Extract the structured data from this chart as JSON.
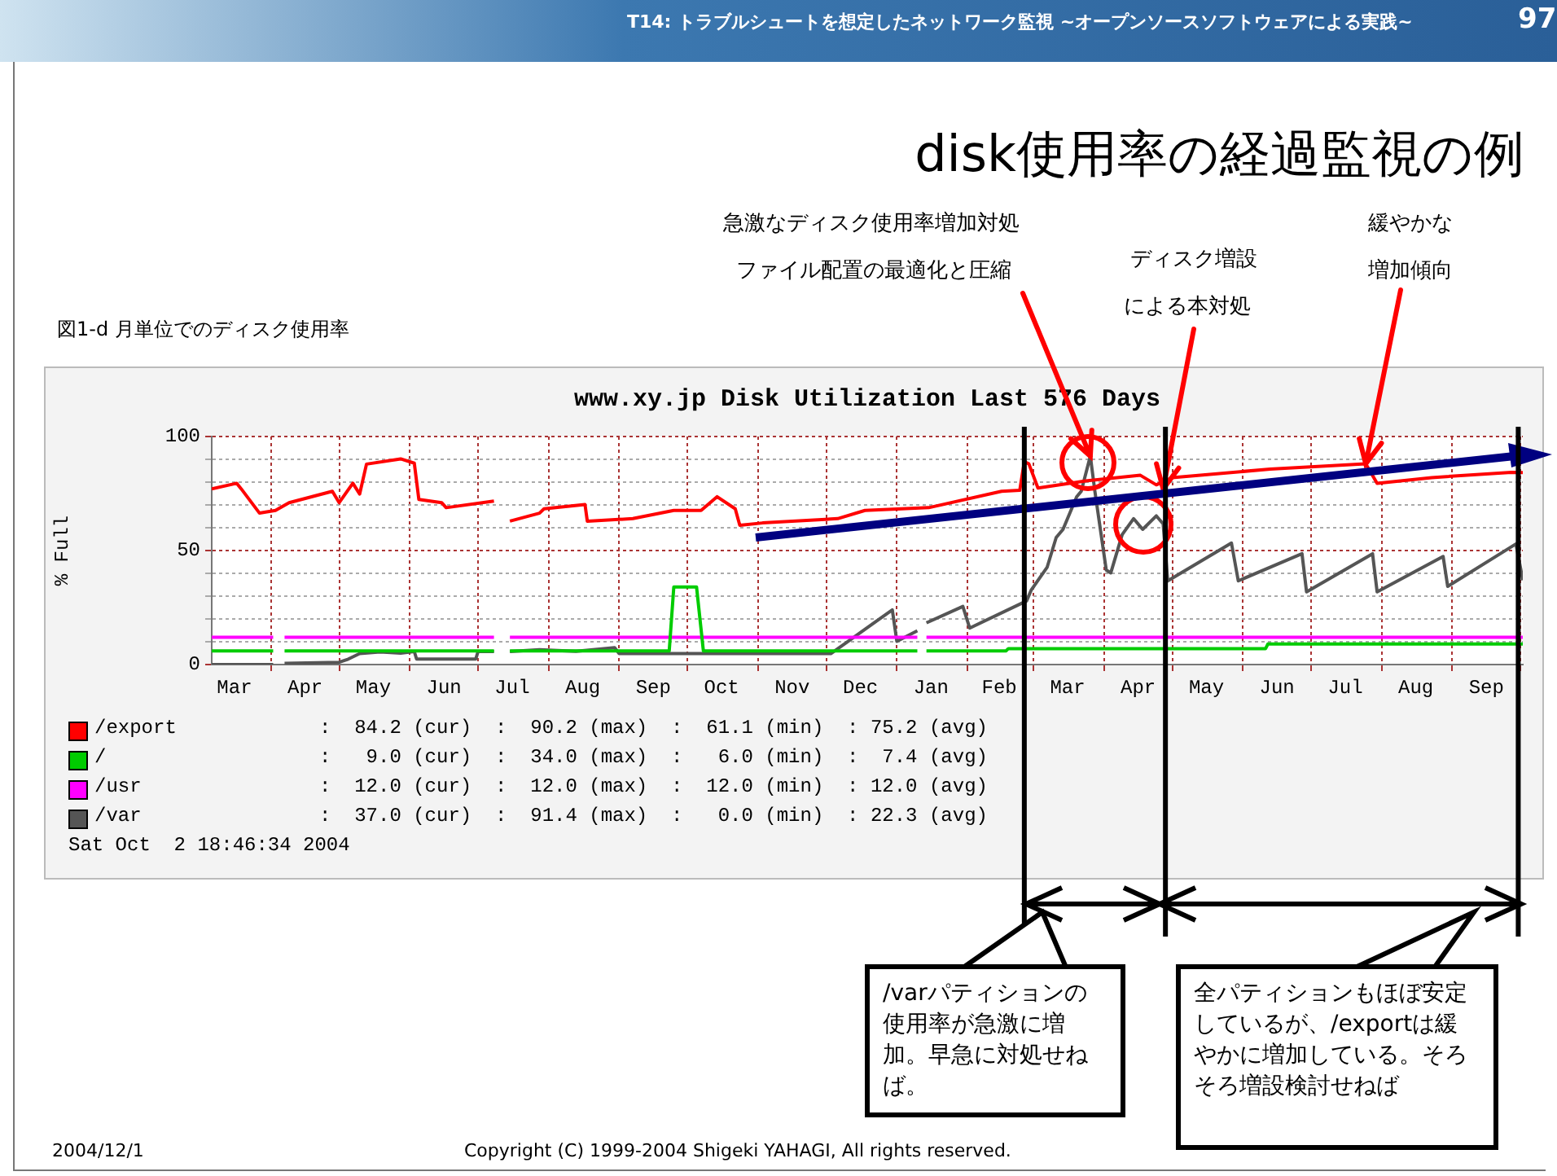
{
  "chart_data": {
    "type": "line",
    "title": "www.xy.jp Disk Utilization Last 576 Days",
    "ylabel": "% Full",
    "xlim": [
      "2003-03-06",
      "2004-10-02"
    ],
    "xticks": [
      {
        "value": "2003-03-16",
        "label": "Mar"
      },
      {
        "value": "2003-04-01",
        "label": null
      },
      {
        "value": "2003-04-16",
        "label": "Apr"
      },
      {
        "value": "2003-05-01",
        "label": null
      },
      {
        "value": "2003-05-16",
        "label": "May"
      },
      {
        "value": "2003-06-01",
        "label": null
      },
      {
        "value": "2003-06-16",
        "label": "Jun"
      },
      {
        "value": "2003-07-01",
        "label": null
      },
      {
        "value": "2003-07-16",
        "label": "Jul"
      },
      {
        "value": "2003-08-01",
        "label": null
      },
      {
        "value": "2003-08-16",
        "label": "Aug"
      },
      {
        "value": "2003-09-01",
        "label": null
      },
      {
        "value": "2003-09-16",
        "label": "Sep"
      },
      {
        "value": "2003-10-01",
        "label": null
      },
      {
        "value": "2003-10-16",
        "label": "Oct"
      },
      {
        "value": "2003-11-01",
        "label": null
      },
      {
        "value": "2003-11-16",
        "label": "Nov"
      },
      {
        "value": "2003-12-01",
        "label": null
      },
      {
        "value": "2003-12-16",
        "label": "Dec"
      },
      {
        "value": "2004-01-01",
        "label": null
      },
      {
        "value": "2004-01-16",
        "label": "Jan"
      },
      {
        "value": "2004-02-01",
        "label": null
      },
      {
        "value": "2004-02-15",
        "label": "Feb"
      },
      {
        "value": "2004-03-01",
        "label": null
      },
      {
        "value": "2004-03-16",
        "label": "Mar"
      },
      {
        "value": "2004-04-01",
        "label": null
      },
      {
        "value": "2004-04-16",
        "label": "Apr"
      },
      {
        "value": "2004-05-01",
        "label": null
      },
      {
        "value": "2004-05-16",
        "label": "May"
      },
      {
        "value": "2004-06-01",
        "label": null
      },
      {
        "value": "2004-06-16",
        "label": "Jun"
      },
      {
        "value": "2004-07-01",
        "label": null
      },
      {
        "value": "2004-07-16",
        "label": "Jul"
      },
      {
        "value": "2004-08-01",
        "label": null
      },
      {
        "value": "2004-08-16",
        "label": "Aug"
      },
      {
        "value": "2004-09-01",
        "label": null
      },
      {
        "value": "2004-09-16",
        "label": "Sep"
      },
      {
        "value": "2004-10-01",
        "label": null
      }
    ],
    "ylim": [
      0,
      100
    ],
    "yticks": [
      0,
      {
        "value": 10,
        "label": null
      },
      {
        "value": 20,
        "label": null
      },
      {
        "value": 30,
        "label": null
      },
      {
        "value": 40,
        "label": null
      },
      50,
      {
        "value": 60,
        "label": null
      },
      {
        "value": 70,
        "label": null
      },
      {
        "value": 80,
        "label": null
      },
      {
        "value": 90,
        "label": null
      },
      100
    ],
    "grid": true,
    "legend": "bottom",
    "series": [
      {
        "name": "/export",
        "color": "#ff0000",
        "x": [
          "2003-03-06",
          "2003-03-17",
          "2003-03-19",
          "2003-03-27",
          "2003-04-03",
          "2003-04-09",
          "2003-04-28",
          "2003-05-01",
          "2003-05-07",
          "2003-05-10",
          "2003-05-13",
          "2003-05-28",
          "2003-06-03",
          "2003-06-05",
          "2003-06-15",
          "2003-06-17",
          "2003-07-08",
          "2003-07-11",
          "2003-07-15",
          "2003-07-28",
          "2003-07-30",
          "2003-08-17",
          "2003-08-18",
          "2003-09-07",
          "2003-09-25",
          "2003-10-07",
          "2003-10-14",
          "2003-10-22",
          "2003-10-24",
          "2003-11-03",
          "2003-12-06",
          "2003-12-18",
          "2004-01-15",
          "2004-02-16",
          "2004-02-24",
          "2004-02-26",
          "2004-02-28",
          "2004-03-03",
          "2004-03-24",
          "2004-04-17",
          "2004-04-24",
          "2004-05-01",
          "2004-06-13",
          "2004-07-25",
          "2004-07-30",
          "2004-08-23",
          "2004-09-27",
          "2004-10-02"
        ],
        "values": [
          77,
          79.5,
          77,
          66.4,
          67.6,
          71,
          76,
          71,
          79.5,
          74.8,
          87.9,
          90.2,
          88.3,
          72.4,
          71,
          68.8,
          71.7,
          null,
          62.9,
          66.4,
          68.3,
          70.2,
          62.9,
          64,
          67.6,
          67.6,
          73.6,
          68.3,
          61.1,
          62.1,
          64,
          67.6,
          68.8,
          76,
          76.4,
          89,
          88,
          77.4,
          80.5,
          83,
          78.8,
          82,
          85.7,
          88,
          79.5,
          82,
          84.3,
          84.2
        ]
      },
      {
        "name": "/",
        "color": "#00cc00",
        "x": [
          "2003-03-06",
          "2003-04-02",
          "2003-04-05",
          "2003-04-07",
          "2003-07-08",
          "2003-07-11",
          "2003-07-15",
          "2003-09-23",
          "2003-09-25",
          "2003-10-05",
          "2003-10-08",
          "2004-01-10",
          "2004-01-12",
          "2004-01-14",
          "2004-02-18",
          "2004-02-19",
          "2004-06-11",
          "2004-06-12",
          "2004-10-02"
        ],
        "values": [
          6,
          6,
          null,
          6,
          6,
          null,
          6,
          6,
          34,
          34,
          6,
          6,
          null,
          6,
          6,
          7,
          7,
          9,
          9
        ]
      },
      {
        "name": "/usr",
        "color": "#ff00ff",
        "x": [
          "2003-03-06",
          "2003-04-02",
          "2003-04-05",
          "2003-04-07",
          "2003-07-08",
          "2003-07-11",
          "2003-07-15",
          "2004-01-10",
          "2004-01-12",
          "2004-01-14",
          "2004-10-02"
        ],
        "values": [
          12,
          12,
          null,
          12,
          12,
          null,
          12,
          12,
          null,
          12,
          12
        ]
      },
      {
        "name": "/var",
        "color": "#555555",
        "x": [
          "2003-03-06",
          "2003-04-02",
          "2003-04-05",
          "2003-04-07",
          "2003-05-01",
          "2003-05-05",
          "2003-05-10",
          "2003-05-19",
          "2003-05-28",
          "2003-06-03",
          "2003-06-04",
          "2003-06-30",
          "2003-07-01",
          "2003-07-08",
          "2003-07-11",
          "2003-07-15",
          "2003-07-28",
          "2003-08-13",
          "2003-08-30",
          "2003-09-01",
          "2003-12-03",
          "2003-12-30",
          "2004-01-01",
          "2004-01-10",
          "2004-01-12",
          "2004-01-14",
          "2004-01-30",
          "2004-02-02",
          "2004-02-27",
          "2004-02-29",
          "2004-03-07",
          "2004-03-11",
          "2004-03-14",
          "2004-03-20",
          "2004-03-22",
          "2004-03-26",
          "2004-03-28",
          "2004-04-02",
          "2004-04-04",
          "2004-04-09",
          "2004-04-14",
          "2004-04-18",
          "2004-04-24",
          "2004-04-27",
          "2004-04-29",
          "2004-05-27",
          "2004-05-30",
          "2004-06-27",
          "2004-06-29",
          "2004-07-28",
          "2004-07-30",
          "2004-08-28",
          "2004-08-30",
          "2004-09-29",
          "2004-10-02"
        ],
        "values": [
          0,
          0,
          null,
          0.5,
          1,
          2.4,
          4.8,
          5.5,
          5,
          5.7,
          2.4,
          2.4,
          5.7,
          5.7,
          null,
          5.7,
          6.5,
          5.8,
          7.4,
          4.8,
          4.8,
          24,
          10.2,
          14.8,
          null,
          18.3,
          25.5,
          16,
          27.9,
          32.6,
          42.6,
          55.7,
          59.3,
          73.6,
          76,
          91.4,
          76,
          41.4,
          40.2,
          57,
          64,
          59.3,
          65.2,
          61.7,
          36.7,
          53.3,
          36.7,
          48.6,
          31.9,
          48.6,
          31.9,
          47.4,
          34.3,
          52.9,
          37
        ]
      }
    ],
    "ref_lines": [
      {
        "axis": "x",
        "value": "2004-02-26",
        "color": "#000000"
      },
      {
        "axis": "x",
        "value": "2004-04-28",
        "color": "#000000"
      },
      {
        "axis": "x",
        "value": "2004-09-30",
        "color": "#000000"
      }
    ],
    "annotations": [
      "T14: トラブルシュートを想定したネットワーク監視 ~オープンソースソフトウェアによる実践~",
      "97",
      "disk使用率の経過監視の例",
      "図1-d 月単位でのディスク使用率",
      "急激なディスク使用率増加対処",
      {
        "text": "ファイル配置の最適化と圧縮",
        "x": "2004-03-26",
        "y": 91.4
      },
      "ディスク増設",
      {
        "text": "による本対処",
        "x": "2004-04-27",
        "y": 77
      },
      "緩やかな",
      {
        "text": "増加傾向",
        "x": "2004-07-25",
        "y": 88
      },
      ":  84.2 (cur)  :  90.2 (max)  :  61.1 (min)  : 75.2 (avg)",
      ":   9.0 (cur)  :  34.0 (max)  :   6.0 (min)  :  7.4 (avg)",
      ":  12.0 (cur)  :  12.0 (max)  :  12.0 (min)  : 12.0 (avg)",
      ":  37.0 (cur)  :  91.4 (max)  :   0.0 (min)  : 22.3 (avg)",
      "Sat Oct  2 18:46:34 2004",
      "/varパティションの使用率が急激に増加。早急に対処せねば。",
      "全パティションもほぼ安定しているが、/exportは緩やかに増加している。そろそろ増設検討せねば",
      "2004/12/1",
      "Copyright (C) 1999-2004 Shigeki YAHAGI, All rights reserved."
    ]
  }
}
